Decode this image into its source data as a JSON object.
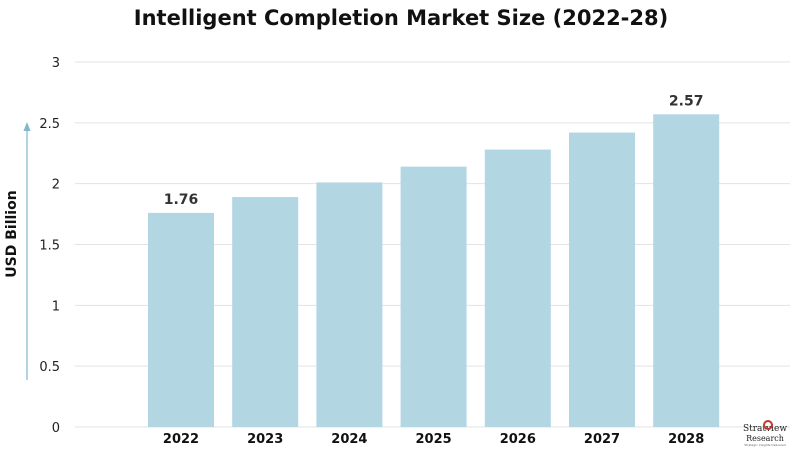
{
  "chart_data": {
    "type": "bar",
    "title": "Intelligent Completion Market Size (2022-28)",
    "ylabel": "USD Billion",
    "xlabel": "",
    "categories": [
      "2022",
      "2023",
      "2024",
      "2025",
      "2026",
      "2027",
      "2028"
    ],
    "values": [
      1.76,
      1.89,
      2.01,
      2.14,
      2.28,
      2.42,
      2.57
    ],
    "data_labels": {
      "0": "1.76",
      "6": "2.57"
    },
    "ylim": [
      0,
      3
    ],
    "yticks": [
      "0",
      "0.5",
      "1",
      "1.5",
      "2",
      "2.5",
      "3"
    ],
    "grid": true,
    "bar_color": "#b3d6e3",
    "axis_arrow_color": "#7fb8cc"
  },
  "logo": {
    "line1": "Stratview",
    "line2": "Research",
    "line3": "Strategic Insights Delivered"
  }
}
